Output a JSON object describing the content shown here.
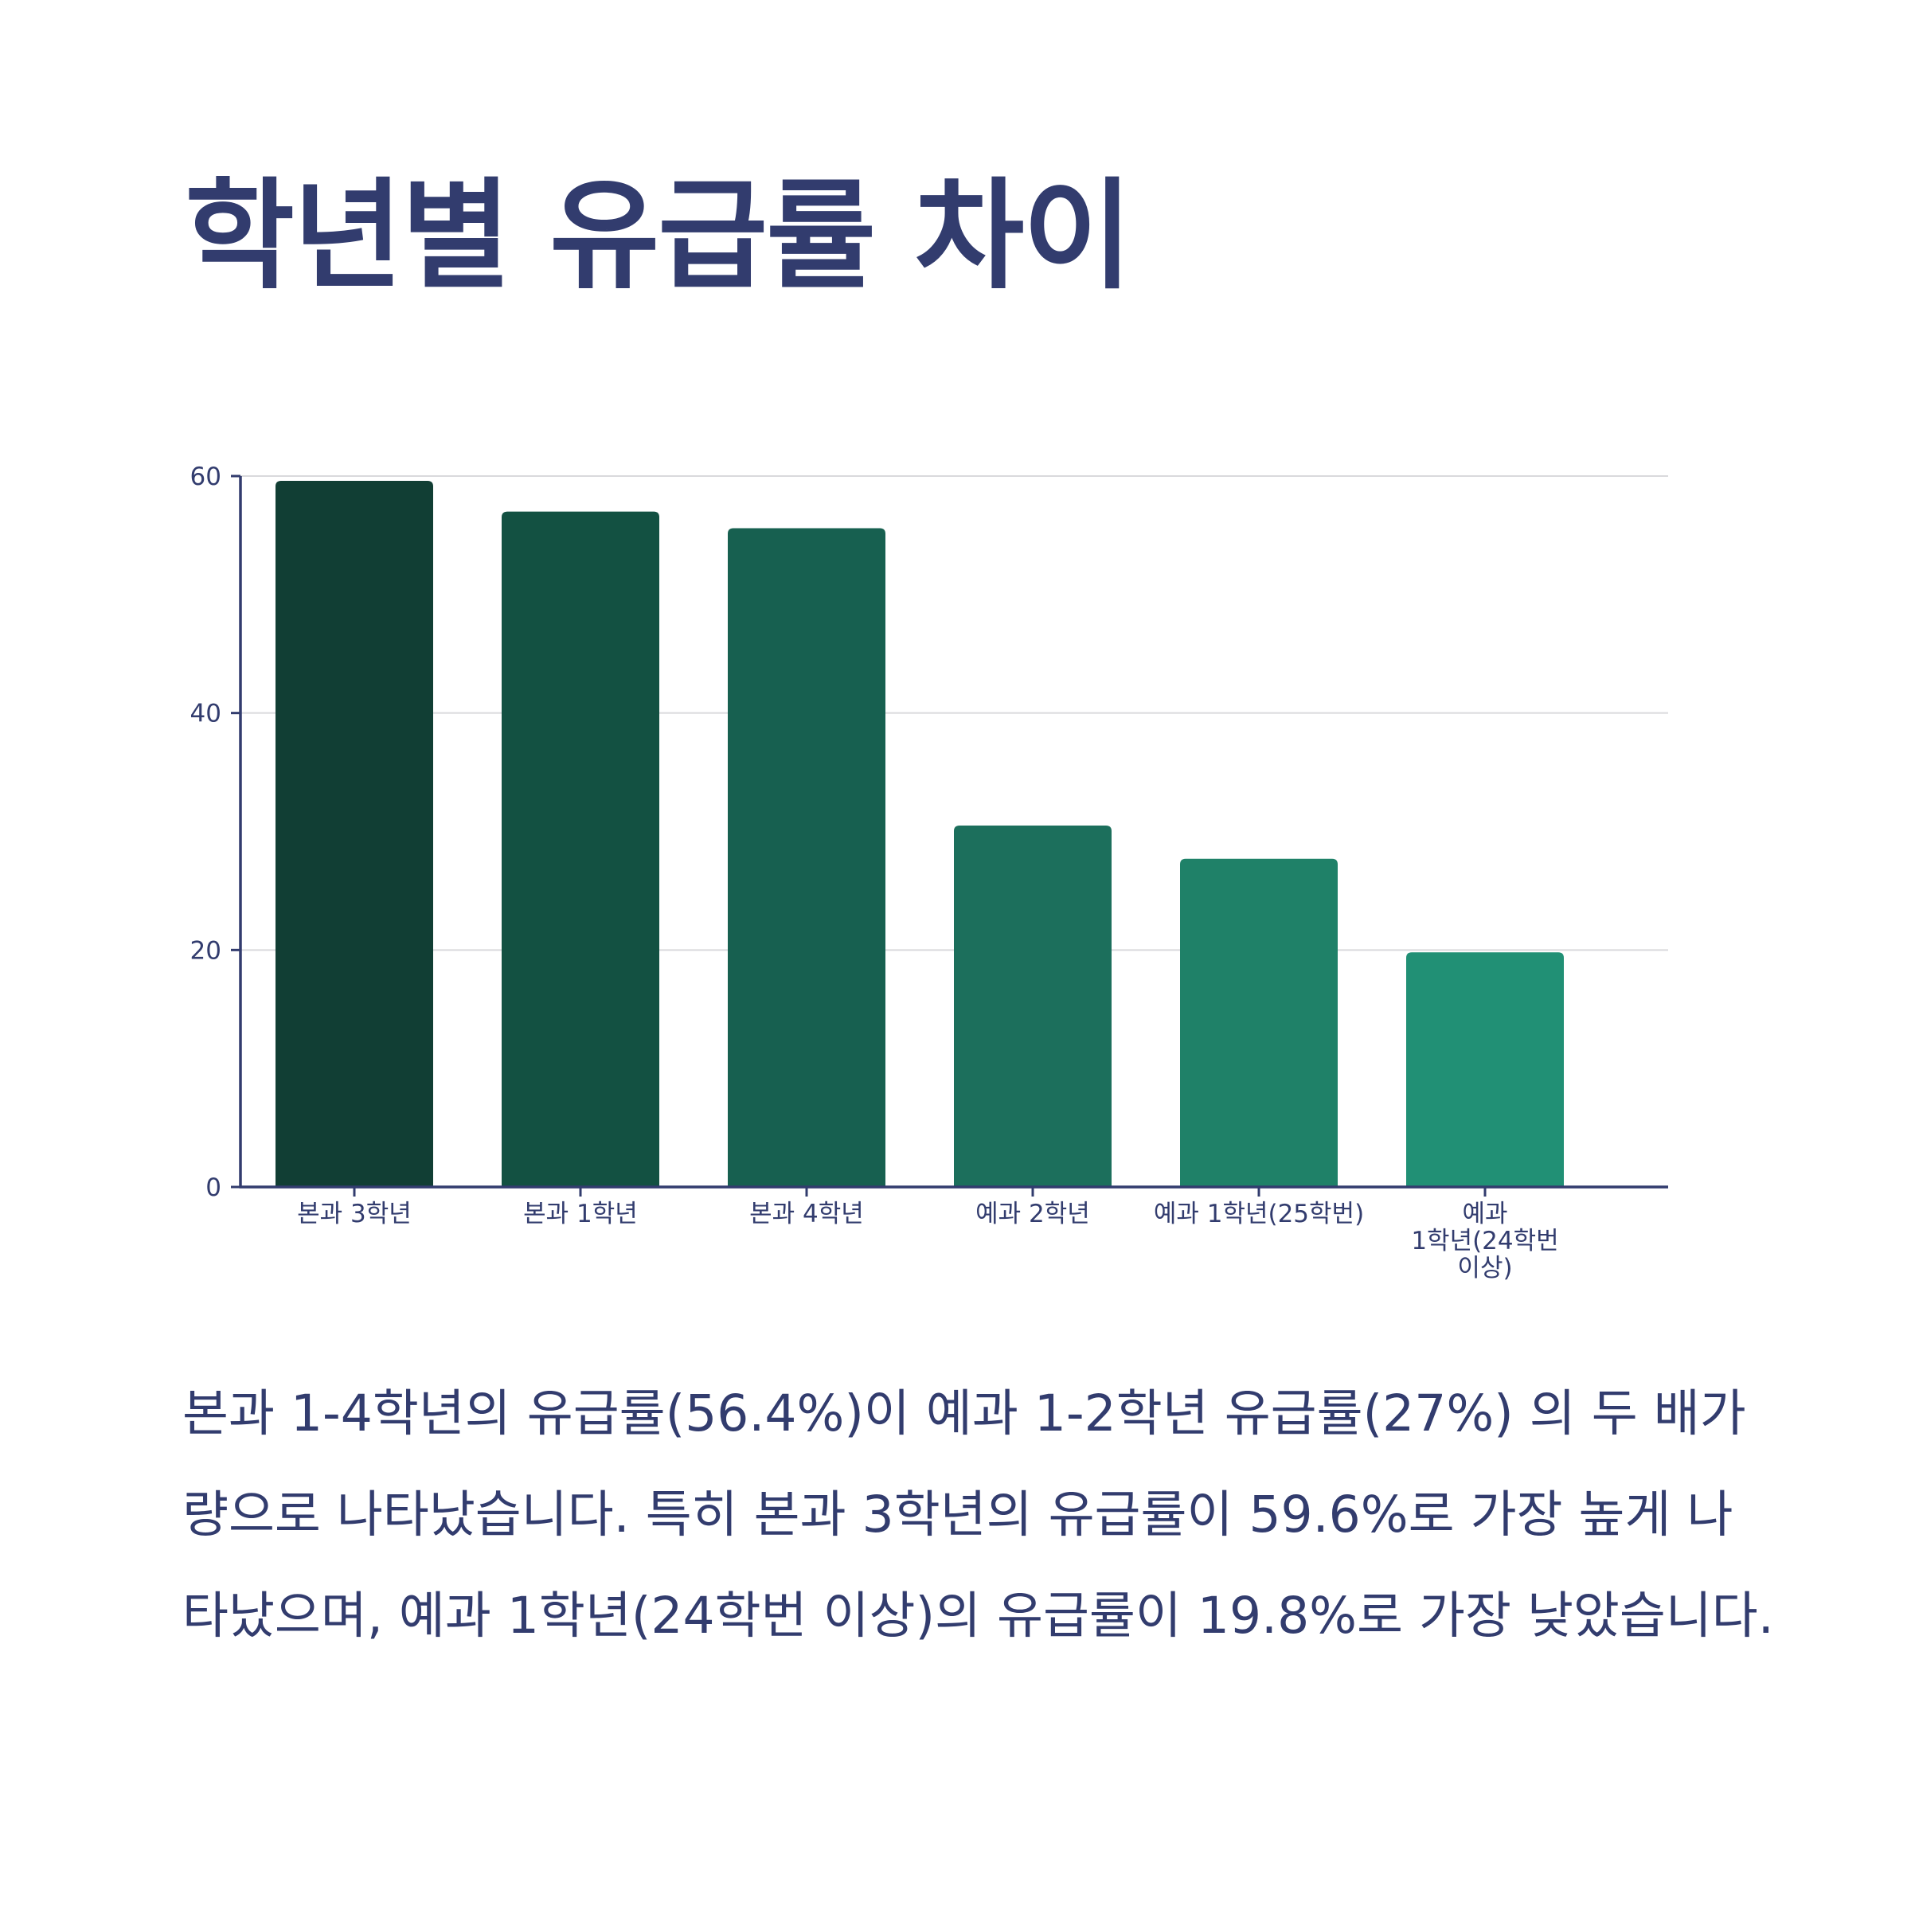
{
  "title": "학년별 유급률 차이",
  "description": "본과 1-4학년의 유급률(56.4%)이 예과 1-2학년 유급률(27%) 의 두 배가량으로 나타났습니다. 특히 본과 3학년의 유급률이 59.6%로 가장 높게 나타났으며, 예과 1학년(24학번 이상)의 유급률이 19.8%로 가장 낮았습니다.",
  "colors": {
    "text": "#323c6e",
    "axis": "#323c6e",
    "grid": "#d9d9dc"
  },
  "chart_data": {
    "type": "bar",
    "categories": [
      "본과 3학년",
      "본과 1학년",
      "본과 4학년",
      "예과 2학년",
      "예과 1학년(25학번)",
      "예과 1학년(24학번 이상)"
    ],
    "category_label_lines": [
      [
        "본과 3학년"
      ],
      [
        "본과 1학년"
      ],
      [
        "본과 4학년"
      ],
      [
        "예과 2학년"
      ],
      [
        "예과 1학년(25학번)"
      ],
      [
        "예과",
        "1학년(24학번",
        "이상)"
      ]
    ],
    "values": [
      59.6,
      57,
      55.6,
      30.5,
      27.7,
      19.8
    ],
    "bar_colors": [
      "#113e34",
      "#135142",
      "#176050",
      "#1c6f5c",
      "#1f8168",
      "#219075"
    ],
    "ylim": [
      0,
      60
    ],
    "yticks": [
      0,
      20,
      40,
      60
    ],
    "grid": true,
    "legend": "none",
    "xlabel": "",
    "ylabel": ""
  }
}
